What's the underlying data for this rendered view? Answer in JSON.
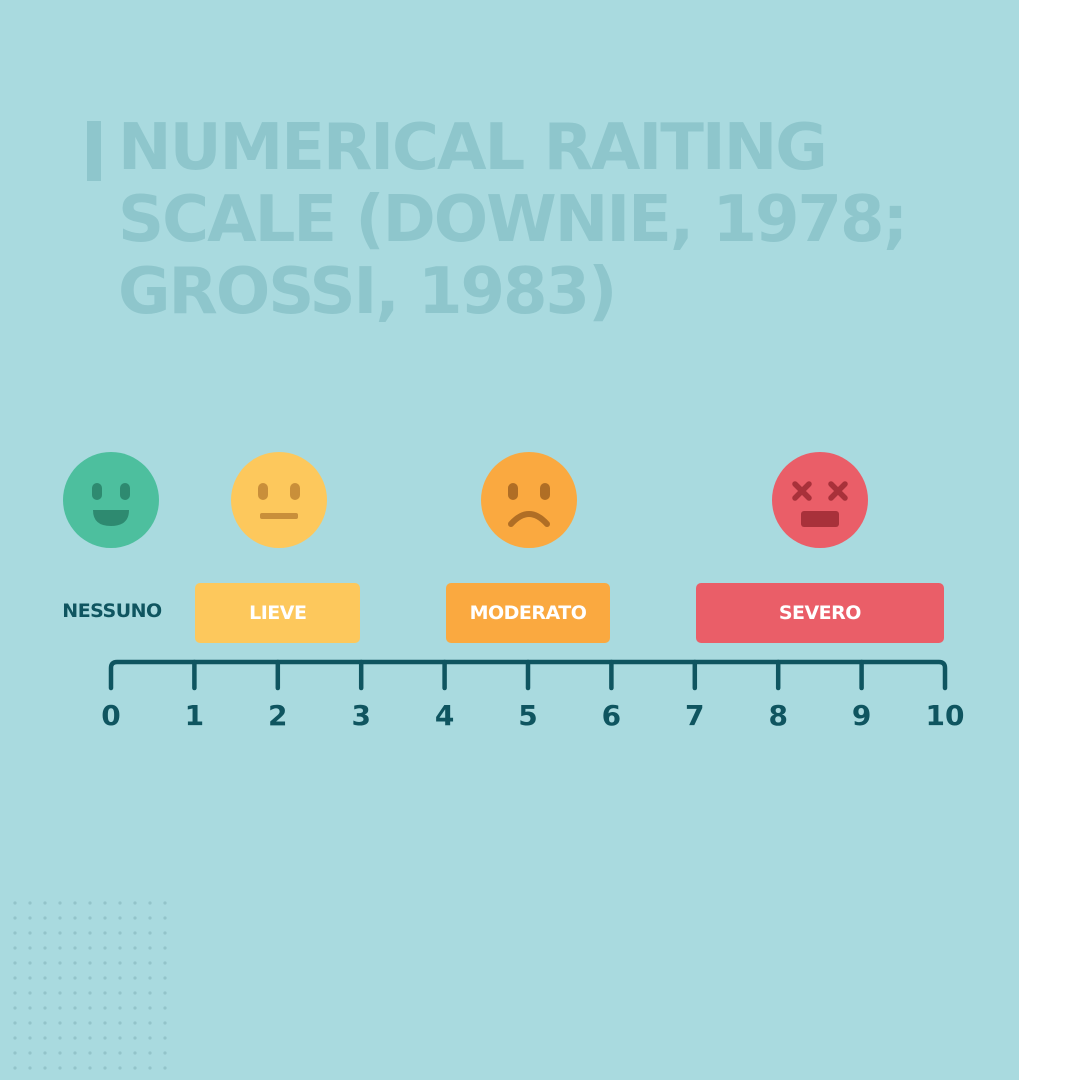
{
  "title": "NUMERICAL RAITING SCALE (DOWNIE, 1978; GROSSI, 1983)",
  "faces": [
    {
      "name": "face-happy-icon",
      "icon": "smiling-face-icon",
      "color": "#4dbf9e",
      "feature": "#2e8a70"
    },
    {
      "name": "face-neutral-icon",
      "icon": "neutral-face-icon",
      "color": "#fdc85c",
      "feature": "#c98f3a"
    },
    {
      "name": "face-sad-icon",
      "icon": "frowning-face-icon",
      "color": "#faa940",
      "feature": "#b06e25"
    },
    {
      "name": "face-dizzy-icon",
      "icon": "dizzy-face-icon",
      "color": "#ea5e68",
      "feature": "#a8313a"
    }
  ],
  "labels": {
    "nessuno": "NESSUNO",
    "lieve": "LIEVE",
    "moderato": "MODERATO",
    "severo": "SEVERO"
  },
  "colors": {
    "background": "#a9dadf",
    "title": "#8ec6cc",
    "axis": "#0f5560",
    "lieve": "#fdc85c",
    "moderato": "#faa940",
    "severo": "#ea5e68"
  },
  "scale": {
    "ticks": [
      "0",
      "1",
      "2",
      "3",
      "4",
      "5",
      "6",
      "7",
      "8",
      "9",
      "10"
    ],
    "min": 0,
    "max": 10,
    "bands": [
      {
        "key": "lieve",
        "from": 1,
        "to": 3
      },
      {
        "key": "moderato",
        "from": 4,
        "to": 6
      },
      {
        "key": "severo",
        "from": 7,
        "to": 10
      }
    ]
  }
}
